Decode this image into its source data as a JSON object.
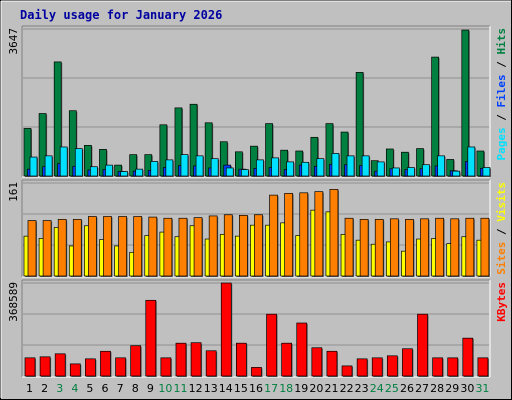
{
  "title": "Daily usage for January 2026",
  "colors": {
    "background": "#c0c0c0",
    "plot_background": "#c0c0c0",
    "title": "#0000a0",
    "hits": "#008040",
    "files": "#0040ff",
    "pages": "#00e0ff",
    "visits": "#ffff00",
    "sites": "#ff8000",
    "kbytes": "#ff0000",
    "weekend_label": "#008040",
    "weekday_label": "#000000"
  },
  "chart_data": [
    {
      "type": "bar",
      "id": "hits-files-pages",
      "categories": [
        "1",
        "2",
        "3",
        "4",
        "5",
        "6",
        "7",
        "8",
        "9",
        "10",
        "11",
        "12",
        "13",
        "14",
        "15",
        "16",
        "17",
        "18",
        "19",
        "20",
        "21",
        "22",
        "23",
        "24",
        "25",
        "26",
        "27",
        "28",
        "29",
        "30",
        "31"
      ],
      "ymax_label": "3647",
      "ylim": [
        0,
        3647
      ],
      "legend": [
        "Pages",
        "Files",
        "Hits"
      ],
      "grid": true,
      "series": [
        {
          "name": "Hits",
          "values": [
            1180,
            1550,
            2830,
            1620,
            760,
            660,
            270,
            530,
            530,
            1270,
            1690,
            1780,
            1320,
            850,
            600,
            740,
            1300,
            640,
            620,
            960,
            1300,
            1090,
            2570,
            380,
            670,
            590,
            680,
            2950,
            410,
            3620,
            620
          ]
        },
        {
          "name": "Files",
          "values": [
            170,
            230,
            310,
            240,
            150,
            160,
            110,
            120,
            140,
            210,
            260,
            250,
            200,
            270,
            170,
            190,
            210,
            160,
            270,
            240,
            290,
            280,
            260,
            120,
            180,
            160,
            180,
            250,
            130,
            360,
            190
          ]
        },
        {
          "name": "Pages",
          "values": [
            470,
            500,
            720,
            680,
            230,
            270,
            110,
            170,
            360,
            400,
            530,
            500,
            430,
            200,
            160,
            400,
            450,
            350,
            340,
            430,
            560,
            500,
            500,
            350,
            200,
            210,
            280,
            500,
            120,
            720,
            210
          ]
        }
      ]
    },
    {
      "type": "bar",
      "id": "visits-sites",
      "categories": [
        "1",
        "2",
        "3",
        "4",
        "5",
        "6",
        "7",
        "8",
        "9",
        "10",
        "11",
        "12",
        "13",
        "14",
        "15",
        "16",
        "17",
        "18",
        "19",
        "20",
        "21",
        "22",
        "23",
        "24",
        "25",
        "26",
        "27",
        "28",
        "29",
        "30",
        "31"
      ],
      "ymax_label": "161",
      "ylim": [
        0,
        161
      ],
      "legend": [
        "Sites",
        "Visits"
      ],
      "grid": true,
      "series": [
        {
          "name": "Visits",
          "values": [
            69,
            65,
            84,
            52,
            87,
            63,
            52,
            41,
            70,
            76,
            68,
            87,
            64,
            72,
            69,
            88,
            88,
            92,
            70,
            114,
            111,
            72,
            62,
            55,
            59,
            43,
            64,
            65,
            56,
            68,
            62
          ]
        },
        {
          "name": "Sites",
          "values": [
            96,
            96,
            98,
            98,
            103,
            103,
            103,
            103,
            102,
            100,
            100,
            101,
            104,
            106,
            105,
            106,
            140,
            143,
            144,
            146,
            150,
            100,
            98,
            98,
            99,
            98,
            99,
            100,
            99,
            100,
            100
          ]
        }
      ]
    },
    {
      "type": "bar",
      "id": "kbytes",
      "categories": [
        "1",
        "2",
        "3",
        "4",
        "5",
        "6",
        "7",
        "8",
        "9",
        "10",
        "11",
        "12",
        "13",
        "14",
        "15",
        "16",
        "17",
        "18",
        "19",
        "20",
        "21",
        "22",
        "23",
        "24",
        "25",
        "26",
        "27",
        "28",
        "29",
        "30",
        "31"
      ],
      "ymax_label": "368589",
      "ylim": [
        0,
        368589
      ],
      "legend": [
        "KBytes"
      ],
      "grid": true,
      "series": [
        {
          "name": "KBytes",
          "values": [
            72000,
            76000,
            88000,
            48000,
            68000,
            98000,
            72000,
            120000,
            300000,
            72000,
            130000,
            132000,
            100000,
            368589,
            130000,
            34000,
            245000,
            130000,
            210000,
            112000,
            98000,
            40000,
            68000,
            72000,
            80000,
            108000,
            245000,
            72000,
            72000,
            150000,
            72000
          ]
        }
      ]
    }
  ]
}
